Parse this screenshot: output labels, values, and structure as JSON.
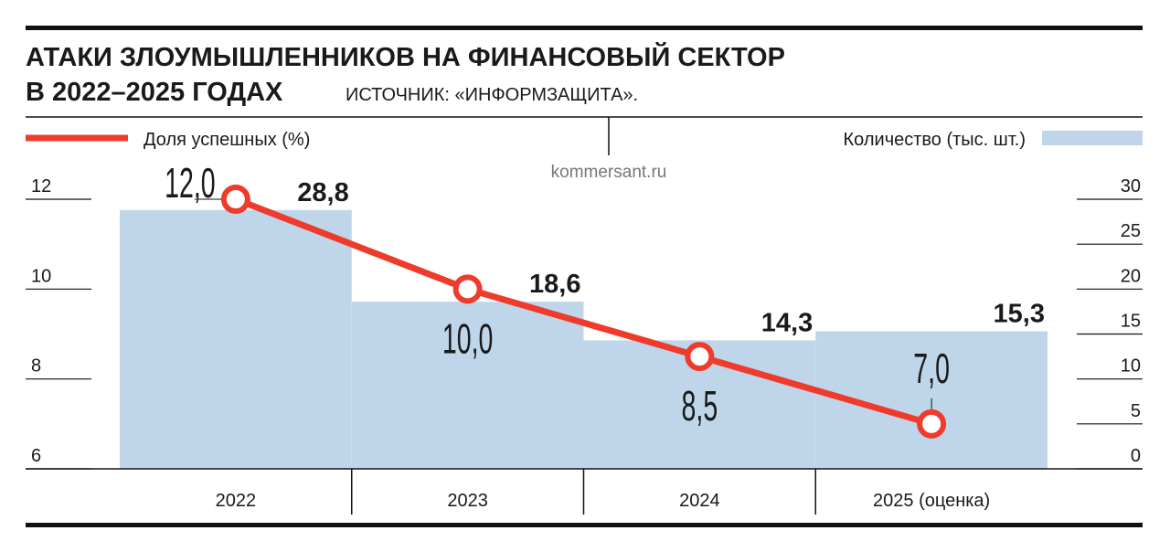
{
  "chart_data": {
    "type": "combo",
    "title_lines": [
      "АТАКИ ЗЛОУМЫШЛЕННИКОВ НА ФИНАНСОВЫЙ СЕКТОР",
      "В 2022–2025 ГОДАХ"
    ],
    "source": "ИСТОЧНИК: «ИНФОРМЗАЩИТА».",
    "watermark": "kommersant.ru",
    "categories": [
      "2022",
      "2023",
      "2024",
      "2025 (оценка)"
    ],
    "series": [
      {
        "name": "Количество (тыс. шт.)",
        "type": "bar",
        "axis": "y2",
        "color": "#bfd6ea",
        "values": [
          28.8,
          18.6,
          14.3,
          15.3
        ],
        "value_labels": [
          "28,8",
          "18,6",
          "14,3",
          "15,3"
        ]
      },
      {
        "name": "Доля успешных (%)",
        "type": "line",
        "axis": "y",
        "color": "#ee3b2b",
        "values": [
          12.0,
          10.0,
          8.5,
          7.0
        ],
        "value_labels": [
          "12,0",
          "10,0",
          "8,5",
          "7,0"
        ]
      }
    ],
    "ylim": [
      6,
      12
    ],
    "yticks": [
      6,
      8,
      10,
      12
    ],
    "y2lim": [
      0,
      30
    ],
    "y2ticks": [
      0,
      5,
      10,
      15,
      20,
      25,
      30
    ]
  }
}
